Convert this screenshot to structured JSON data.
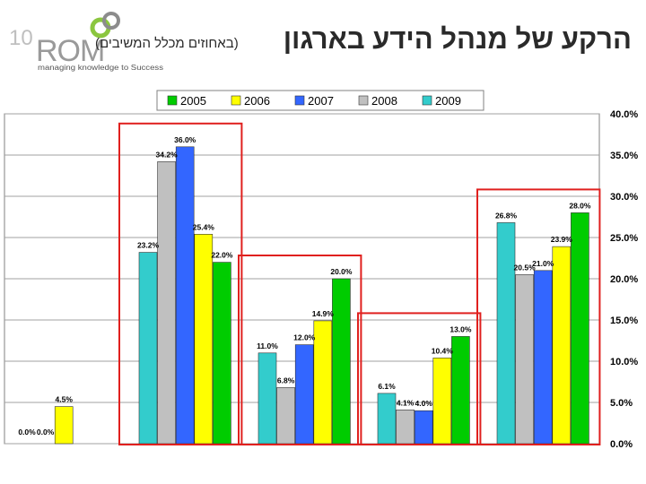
{
  "header": {
    "title": "הרקע של מנהל הידע בארגון",
    "subtitle": "(באחוזים מכלל המשיבים)",
    "logo_number": "10",
    "logo_name": "ROM",
    "logo_tagline": "managing knowledge to Success"
  },
  "colors": {
    "2005": "#00cc00",
    "2006": "#ffff00",
    "2007": "#3366ff",
    "2008": "#c0c0c0",
    "2009": "#33cccc",
    "highlight": "#e0201e",
    "logo_green": "#8bc63f"
  },
  "chart_data": {
    "type": "bar",
    "title": "",
    "xlabel": "",
    "ylabel": "",
    "ylim": [
      0,
      40
    ],
    "yticks": [
      "0.0%",
      "5.0%",
      "10.0%",
      "15.0%",
      "20.0%",
      "25.0%",
      "30.0%",
      "35.0%",
      "40.0%"
    ],
    "legend": [
      "2005",
      "2006",
      "2007",
      "2008",
      "2009"
    ],
    "legend_position": "top",
    "grid": true,
    "highlighted_groups": [
      1,
      2,
      3,
      4
    ],
    "groups": [
      {
        "bars": [
          {
            "year": "2009",
            "value": 0.0,
            "label": "0.0%"
          },
          {
            "year": "2008",
            "value": 0.0,
            "label": "0.0%"
          },
          {
            "year": "2006",
            "value": 4.5,
            "label": "4.5%"
          }
        ]
      },
      {
        "bars": [
          {
            "year": "2009",
            "value": 23.2,
            "label": "23.2%"
          },
          {
            "year": "2008",
            "value": 34.2,
            "label": "34.2%"
          },
          {
            "year": "2007",
            "value": 36.0,
            "label": "36.0%"
          },
          {
            "year": "2006",
            "value": 25.4,
            "label": "25.4%"
          },
          {
            "year": "2005",
            "value": 22.0,
            "label": "22.0%"
          }
        ]
      },
      {
        "bars": [
          {
            "year": "2009",
            "value": 11.0,
            "label": "11.0%"
          },
          {
            "year": "2008",
            "value": 6.8,
            "label": "6.8%"
          },
          {
            "year": "2007",
            "value": 12.0,
            "label": "12.0%"
          },
          {
            "year": "2006",
            "value": 14.9,
            "label": "14.9%"
          },
          {
            "year": "2005",
            "value": 20.0,
            "label": "20.0%"
          }
        ]
      },
      {
        "bars": [
          {
            "year": "2009",
            "value": 6.1,
            "label": "6.1%"
          },
          {
            "year": "2008",
            "value": 4.1,
            "label": "4.1%"
          },
          {
            "year": "2007",
            "value": 4.0,
            "label": "4.0%"
          },
          {
            "year": "2006",
            "value": 10.4,
            "label": "10.4%"
          },
          {
            "year": "2005",
            "value": 13.0,
            "label": "13.0%"
          }
        ]
      },
      {
        "bars": [
          {
            "year": "2009",
            "value": 26.8,
            "label": "26.8%"
          },
          {
            "year": "2008",
            "value": 20.5,
            "label": "20.5%"
          },
          {
            "year": "2007",
            "value": 21.0,
            "label": "21.0%"
          },
          {
            "year": "2006",
            "value": 23.9,
            "label": "23.9%"
          },
          {
            "year": "2005",
            "value": 28.0,
            "label": "28.0%"
          }
        ]
      }
    ]
  }
}
